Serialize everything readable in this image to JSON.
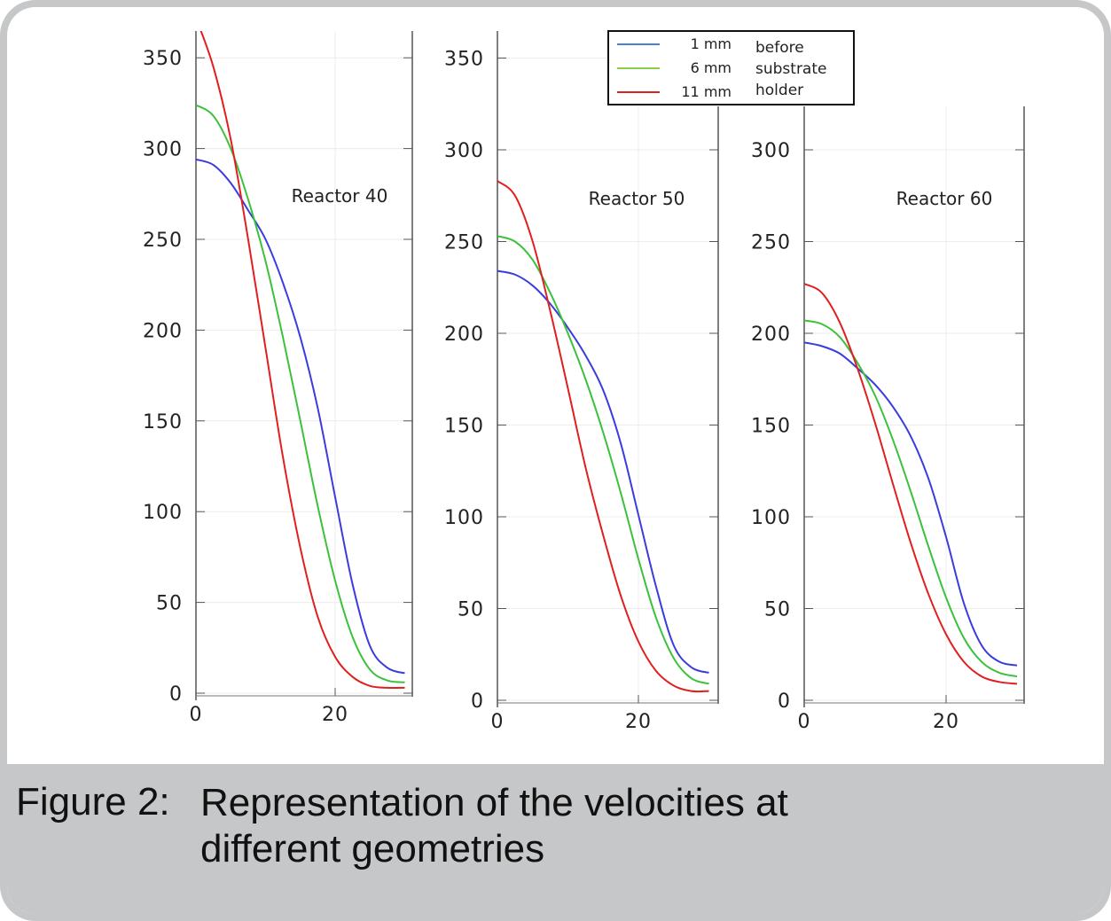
{
  "caption": {
    "label": "Figure 2:",
    "text": "Representation of the velocities at different geometries"
  },
  "legend": {
    "entries": [
      {
        "label": "1 mm",
        "color": "#3b3bdf"
      },
      {
        "label": "6 mm",
        "color": "#3cc13c"
      },
      {
        "label": "11 mm",
        "color": "#e01f1f"
      }
    ],
    "note": [
      "before",
      "substrate",
      "holder"
    ]
  },
  "chart_data": [
    {
      "type": "line",
      "title": "Reactor 40",
      "xticks": [
        0,
        20
      ],
      "yticks": [
        0,
        50,
        100,
        150,
        200,
        250,
        300,
        350
      ],
      "xlim": [
        0,
        31
      ],
      "ylim": [
        0,
        360
      ],
      "x": [
        0,
        2.5,
        5,
        7.5,
        10,
        12.5,
        15,
        17.5,
        20,
        22.5,
        25,
        27.5,
        30
      ],
      "series": [
        {
          "name": "1 mm",
          "values": [
            294,
            291,
            281,
            266,
            250,
            226,
            196,
            157,
            108,
            60,
            26,
            14,
            11
          ]
        },
        {
          "name": "6 mm",
          "values": [
            324,
            318,
            300,
            272,
            238,
            196,
            150,
            103,
            62,
            31,
            13,
            7,
            6
          ]
        },
        {
          "name": "11 mm",
          "values": [
            372,
            345,
            305,
            250,
            190,
            130,
            80,
            42,
            20,
            9,
            4,
            3,
            3
          ]
        }
      ]
    },
    {
      "type": "line",
      "title": "Reactor 50",
      "xticks": [
        0,
        20
      ],
      "yticks": [
        0,
        50,
        100,
        150,
        200,
        250,
        300,
        350
      ],
      "xlim": [
        0,
        31
      ],
      "ylim": [
        0,
        360
      ],
      "x": [
        0,
        2.5,
        5,
        7.5,
        10,
        12.5,
        15,
        17.5,
        20,
        22.5,
        25,
        27.5,
        30
      ],
      "series": [
        {
          "name": "1 mm",
          "values": [
            234,
            232,
            226,
            216,
            203,
            188,
            169,
            140,
            101,
            62,
            30,
            18,
            15
          ]
        },
        {
          "name": "6 mm",
          "values": [
            253,
            250,
            240,
            222,
            200,
            175,
            146,
            113,
            77,
            45,
            23,
            12,
            9
          ]
        },
        {
          "name": "11 mm",
          "values": [
            283,
            275,
            250,
            212,
            170,
            127,
            90,
            57,
            32,
            16,
            8,
            5,
            5
          ]
        }
      ]
    },
    {
      "type": "line",
      "title": "Reactor 60",
      "xticks": [
        0,
        20
      ],
      "yticks": [
        0,
        50,
        100,
        150,
        200,
        250,
        300
      ],
      "xlim": [
        0,
        31
      ],
      "ylim": [
        0,
        320
      ],
      "x": [
        0,
        2.5,
        5,
        7.5,
        10,
        12.5,
        15,
        17.5,
        20,
        22.5,
        25,
        27.5,
        30
      ],
      "series": [
        {
          "name": "1 mm",
          "values": [
            195,
            193,
            189,
            181,
            172,
            160,
            144,
            121,
            89,
            53,
            30,
            21,
            19
          ]
        },
        {
          "name": "6 mm",
          "values": [
            207,
            205,
            198,
            184,
            166,
            142,
            114,
            84,
            56,
            34,
            21,
            15,
            13
          ]
        },
        {
          "name": "11 mm",
          "values": [
            227,
            222,
            206,
            181,
            151,
            118,
            86,
            58,
            36,
            21,
            13,
            10,
            9
          ]
        }
      ]
    }
  ]
}
